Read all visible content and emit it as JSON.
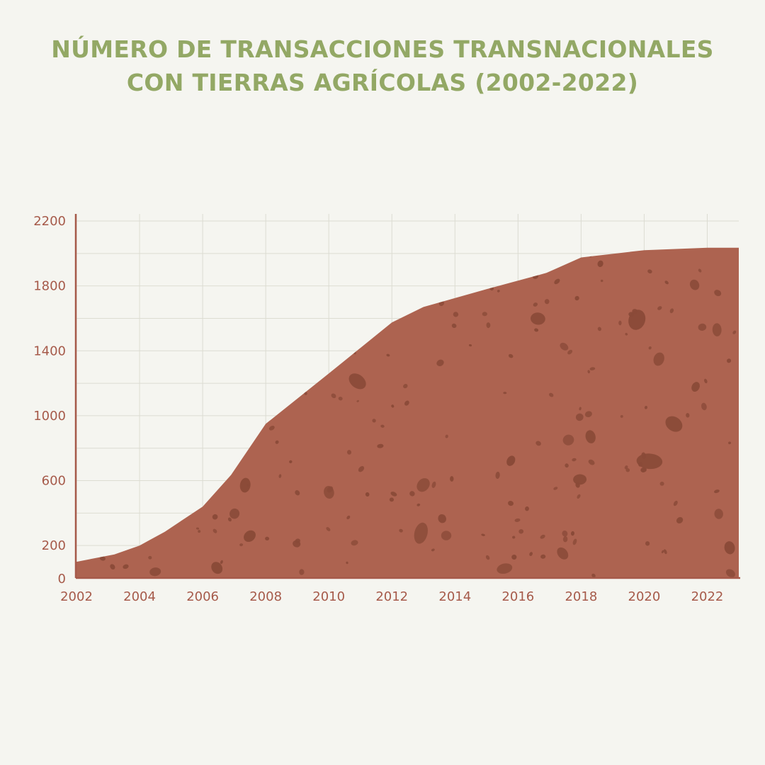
{
  "title": {
    "line1": "NÚMERO DE TRANSACCIONES TRANSNACIONALES",
    "line2": "CON TIERRAS AGRÍCOLAS (2002-2022)"
  },
  "colors": {
    "background": "#f5f5f0",
    "title": "#93a865",
    "area_fill": "#ad6350",
    "pebbles": "#8a4a38",
    "axis": "#a65a4a",
    "grid": "#dcdcd2"
  },
  "chart_data": {
    "type": "area",
    "x": [
      2002,
      2003.2,
      2004,
      2004.8,
      2006,
      2006.9,
      2008,
      2010,
      2012,
      2013,
      2015,
      2016.9,
      2018,
      2020,
      2022,
      2023
    ],
    "values": [
      100,
      145,
      200,
      285,
      440,
      635,
      950,
      1260,
      1575,
      1670,
      1780,
      1880,
      1975,
      2020,
      2035,
      2035
    ],
    "xlim": [
      2002,
      2023
    ],
    "ylim": [
      0,
      2200
    ],
    "x_ticks": [
      "2002",
      "2004",
      "2006",
      "2008",
      "2010",
      "2012",
      "2014",
      "2016",
      "2018",
      "2020",
      "2022"
    ],
    "y_ticks": [
      "0",
      "200",
      "600",
      "1000",
      "1400",
      "1800",
      "2200"
    ],
    "grid": true,
    "xlabel": "",
    "ylabel": ""
  }
}
